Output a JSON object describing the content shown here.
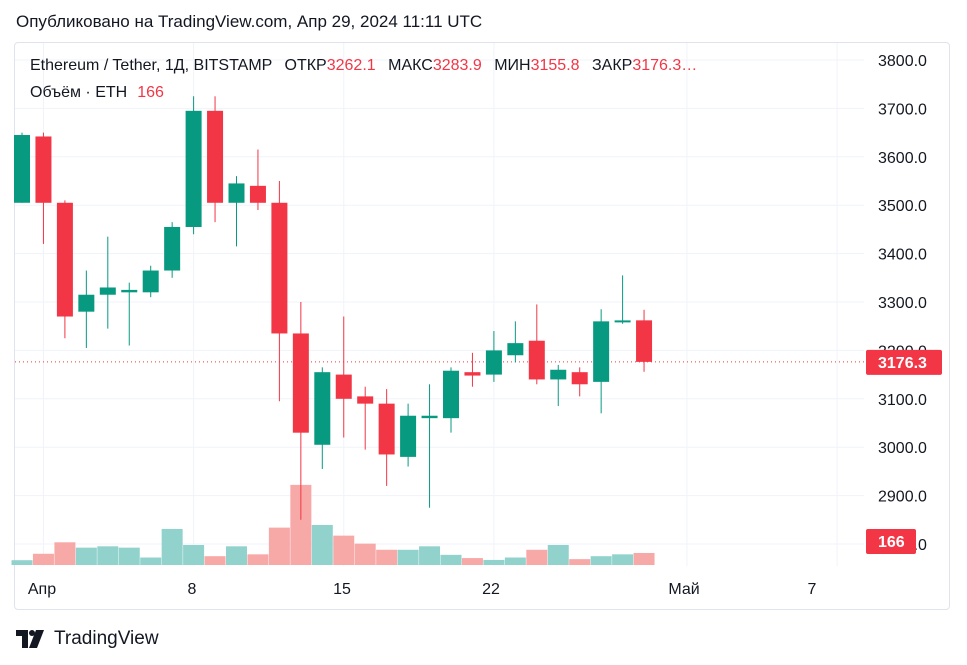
{
  "header": {
    "published": "Опубликовано на TradingView.com, Апр 29, 2024 11:11 UTC"
  },
  "legend": {
    "symbol": "Ethereum / Tether, 1Д, BITSTAMP",
    "open_label": "ОТКР",
    "open_value": "3262.1",
    "high_label": "МАКС",
    "high_value": "3283.9",
    "low_label": "МИН",
    "low_value": "3155.8",
    "close_label": "ЗАКР",
    "close_value": "3176.3…"
  },
  "volume_legend": {
    "label": "Объём · ETH",
    "value": "166"
  },
  "price_badge": "3176.3",
  "volume_badge": "166",
  "footer": {
    "brand": "TradingView"
  },
  "colors": {
    "up": "#089981",
    "down": "#f23645",
    "up_volume": "#92d2cc",
    "down_volume": "#f7a9a7",
    "grid": "#f0f3fa",
    "text": "#131722"
  },
  "chart_data": {
    "type": "candlestick",
    "title": "Ethereum / Tether, 1Д, BITSTAMP",
    "y_axis_ticks": [
      "3800.0",
      "3700.0",
      "3600.0",
      "3500.0",
      "3400.0",
      "3300.0",
      "3200.0",
      "3100.0",
      "3000.0",
      "2900.0",
      "2800.0"
    ],
    "x_axis_ticks": [
      "Апр",
      "8",
      "15",
      "22",
      "Май",
      "7"
    ],
    "ylim": [
      2750,
      3850
    ],
    "last_price": 3176.3,
    "candles": [
      {
        "date": "2024-03-31",
        "o": 3505,
        "h": 3650,
        "l": 3505,
        "c": 3645
      },
      {
        "date": "2024-04-01",
        "o": 3642,
        "h": 3650,
        "l": 3420,
        "c": 3505
      },
      {
        "date": "2024-04-02",
        "o": 3505,
        "h": 3510,
        "l": 3225,
        "c": 3270
      },
      {
        "date": "2024-04-03",
        "o": 3280,
        "h": 3365,
        "l": 3205,
        "c": 3315
      },
      {
        "date": "2024-04-04",
        "o": 3315,
        "h": 3435,
        "l": 3245,
        "c": 3330
      },
      {
        "date": "2024-04-05",
        "o": 3320,
        "h": 3340,
        "l": 3210,
        "c": 3325
      },
      {
        "date": "2024-04-06",
        "o": 3320,
        "h": 3375,
        "l": 3310,
        "c": 3365
      },
      {
        "date": "2024-04-07",
        "o": 3365,
        "h": 3465,
        "l": 3350,
        "c": 3455
      },
      {
        "date": "2024-04-08",
        "o": 3455,
        "h": 3725,
        "l": 3440,
        "c": 3695
      },
      {
        "date": "2024-04-09",
        "o": 3695,
        "h": 3725,
        "l": 3465,
        "c": 3505
      },
      {
        "date": "2024-04-10",
        "o": 3505,
        "h": 3560,
        "l": 3415,
        "c": 3545
      },
      {
        "date": "2024-04-11",
        "o": 3540,
        "h": 3615,
        "l": 3490,
        "c": 3505
      },
      {
        "date": "2024-04-12",
        "o": 3505,
        "h": 3550,
        "l": 3095,
        "c": 3235
      },
      {
        "date": "2024-04-13",
        "o": 3235,
        "h": 3300,
        "l": 2850,
        "c": 3030
      },
      {
        "date": "2024-04-14",
        "o": 3005,
        "h": 3165,
        "l": 2955,
        "c": 3155
      },
      {
        "date": "2024-04-15",
        "o": 3150,
        "h": 3270,
        "l": 3020,
        "c": 3100
      },
      {
        "date": "2024-04-16",
        "o": 3105,
        "h": 3125,
        "l": 2995,
        "c": 3090
      },
      {
        "date": "2024-04-17",
        "o": 3090,
        "h": 3120,
        "l": 2920,
        "c": 2985
      },
      {
        "date": "2024-04-18",
        "o": 2980,
        "h": 3090,
        "l": 2960,
        "c": 3065
      },
      {
        "date": "2024-04-19",
        "o": 3060,
        "h": 3130,
        "l": 2875,
        "c": 3065
      },
      {
        "date": "2024-04-20",
        "o": 3060,
        "h": 3165,
        "l": 3030,
        "c": 3158
      },
      {
        "date": "2024-04-21",
        "o": 3155,
        "h": 3195,
        "l": 3125,
        "c": 3148
      },
      {
        "date": "2024-04-22",
        "o": 3150,
        "h": 3240,
        "l": 3135,
        "c": 3200
      },
      {
        "date": "2024-04-23",
        "o": 3190,
        "h": 3260,
        "l": 3175,
        "c": 3215
      },
      {
        "date": "2024-04-24",
        "o": 3220,
        "h": 3295,
        "l": 3130,
        "c": 3140
      },
      {
        "date": "2024-04-25",
        "o": 3140,
        "h": 3170,
        "l": 3085,
        "c": 3160
      },
      {
        "date": "2024-04-26",
        "o": 3155,
        "h": 3165,
        "l": 3105,
        "c": 3130
      },
      {
        "date": "2024-04-27",
        "o": 3135,
        "h": 3285,
        "l": 3070,
        "c": 3260
      },
      {
        "date": "2024-04-28",
        "o": 3258,
        "h": 3355,
        "l": 3255,
        "c": 3262
      },
      {
        "date": "2024-04-29",
        "o": 3262.1,
        "h": 3283.9,
        "l": 3155.8,
        "c": 3176.3
      }
    ],
    "volume_relative": [
      0.18,
      0.42,
      0.85,
      0.65,
      0.7,
      0.65,
      0.28,
      1.35,
      0.75,
      0.33,
      0.7,
      0.4,
      1.4,
      3.0,
      1.5,
      1.1,
      0.8,
      0.57,
      0.57,
      0.7,
      0.38,
      0.26,
      0.19,
      0.28,
      0.57,
      0.75,
      0.22,
      0.33,
      0.4,
      0.45
    ]
  }
}
